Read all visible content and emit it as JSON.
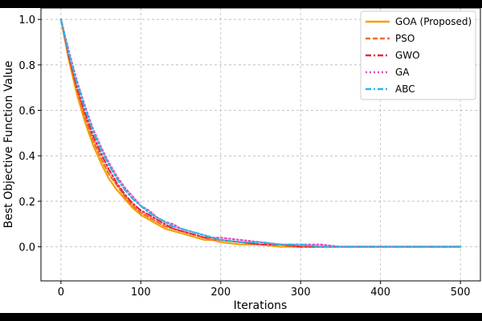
{
  "chart_data": {
    "type": "line",
    "title": "",
    "xlabel": "Iterations",
    "ylabel": "Best Objective Function Value",
    "xlim": [
      -25,
      525
    ],
    "ylim": [
      -0.15,
      1.05
    ],
    "x_ticks": [
      0,
      100,
      200,
      300,
      400,
      500
    ],
    "y_ticks": [
      0.0,
      0.2,
      0.4,
      0.6,
      0.8,
      1.0
    ],
    "x_tick_labels": [
      "0",
      "100",
      "200",
      "300",
      "400",
      "500"
    ],
    "y_tick_labels": [
      "0.0",
      "0.2",
      "0.4",
      "0.6",
      "0.8",
      "1.0"
    ],
    "grid": true,
    "legend_position": "top-right",
    "x": [
      0,
      10,
      20,
      30,
      40,
      50,
      60,
      70,
      80,
      90,
      100,
      110,
      120,
      130,
      140,
      150,
      160,
      170,
      180,
      190,
      200,
      225,
      250,
      275,
      300,
      325,
      350,
      375,
      400,
      425,
      450,
      475,
      500
    ],
    "series": [
      {
        "name": "GOA (Proposed)",
        "color": "#f5a000",
        "dash": "solid",
        "values": [
          1.0,
          0.82,
          0.67,
          0.55,
          0.45,
          0.37,
          0.3,
          0.25,
          0.21,
          0.17,
          0.14,
          0.12,
          0.1,
          0.08,
          0.07,
          0.06,
          0.05,
          0.04,
          0.03,
          0.03,
          0.02,
          0.01,
          0.01,
          0.0,
          0.0,
          0.0,
          0.0,
          0.0,
          0.0,
          0.0,
          0.0,
          0.0,
          0.0
        ]
      },
      {
        "name": "PSO",
        "color": "#f46d2c",
        "dash": "dashed",
        "values": [
          1.0,
          0.83,
          0.69,
          0.57,
          0.47,
          0.39,
          0.32,
          0.27,
          0.22,
          0.18,
          0.15,
          0.13,
          0.11,
          0.09,
          0.08,
          0.07,
          0.06,
          0.05,
          0.04,
          0.03,
          0.03,
          0.02,
          0.01,
          0.01,
          0.0,
          0.0,
          0.0,
          0.0,
          0.0,
          0.0,
          0.0,
          0.0,
          0.0
        ]
      },
      {
        "name": "GWO",
        "color": "#e8283c",
        "dash": "dashdot",
        "values": [
          1.0,
          0.84,
          0.7,
          0.59,
          0.49,
          0.41,
          0.34,
          0.28,
          0.23,
          0.19,
          0.16,
          0.14,
          0.12,
          0.1,
          0.08,
          0.07,
          0.06,
          0.05,
          0.04,
          0.04,
          0.03,
          0.02,
          0.01,
          0.01,
          0.0,
          0.0,
          0.0,
          0.0,
          0.0,
          0.0,
          0.0,
          0.0,
          0.0
        ]
      },
      {
        "name": "GA",
        "color": "#e04fbd",
        "dash": "dotted",
        "values": [
          1.0,
          0.86,
          0.73,
          0.62,
          0.52,
          0.44,
          0.37,
          0.31,
          0.26,
          0.22,
          0.18,
          0.16,
          0.13,
          0.11,
          0.1,
          0.08,
          0.07,
          0.06,
          0.05,
          0.04,
          0.04,
          0.03,
          0.02,
          0.01,
          0.01,
          0.01,
          0.0,
          0.0,
          0.0,
          0.0,
          0.0,
          0.0,
          0.0
        ]
      },
      {
        "name": "ABC",
        "color": "#2bb5e6",
        "dash": "dashdot",
        "values": [
          1.0,
          0.85,
          0.72,
          0.61,
          0.51,
          0.43,
          0.36,
          0.3,
          0.25,
          0.21,
          0.18,
          0.15,
          0.13,
          0.11,
          0.09,
          0.08,
          0.07,
          0.06,
          0.05,
          0.04,
          0.03,
          0.02,
          0.02,
          0.01,
          0.01,
          0.0,
          0.0,
          0.0,
          0.0,
          0.0,
          0.0,
          0.0,
          0.0
        ]
      }
    ]
  }
}
